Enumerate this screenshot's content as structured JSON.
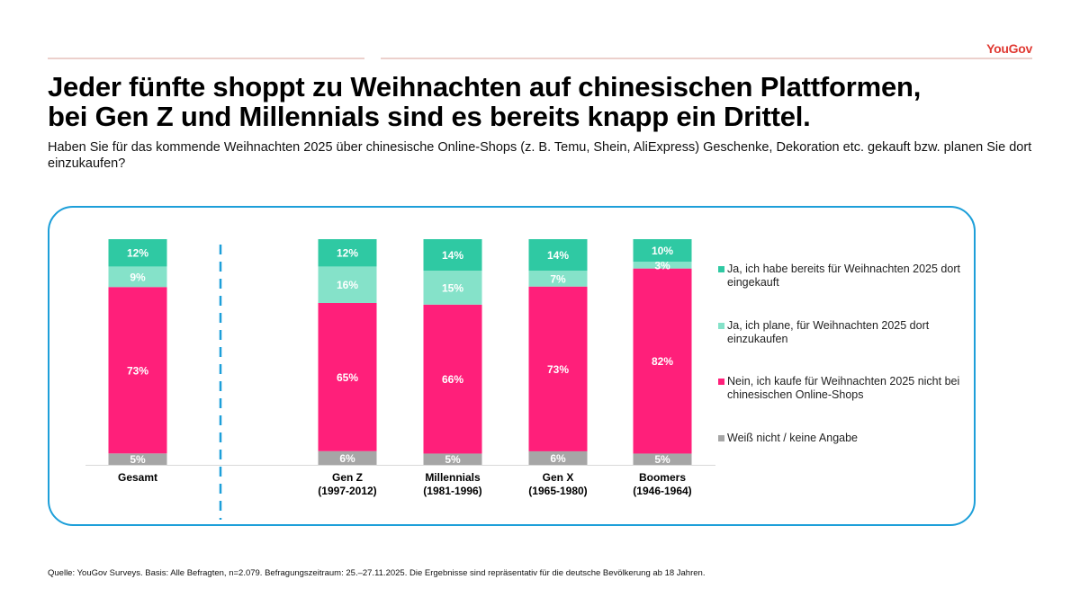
{
  "brand": {
    "logo_text": "YouGov",
    "accent_color": "#e03a33",
    "frame_color": "#1d9fd9"
  },
  "header": {
    "title_line1": "Jeder fünfte shoppt zu Weihnachten auf chinesischen Plattformen,",
    "title_line2": "bei Gen Z und Millennials sind es bereits knapp ein Drittel.",
    "subtitle": "Haben Sie für das kommende Weihnachten 2025 über chinesische Online-Shops (z. B. Temu, Shein, AliExpress) Geschenke, Dekoration etc. gekauft bzw. planen Sie dort einzukaufen?"
  },
  "chart_data": {
    "type": "bar",
    "stacked": true,
    "percent": true,
    "title": "",
    "xlabel": "",
    "ylabel": "",
    "ylim": [
      0,
      100
    ],
    "grid": false,
    "legend_position": "right",
    "categories": [
      {
        "name": "Gesamt",
        "sub": ""
      },
      {
        "name": "Gen Z",
        "sub": "(1997-2012)"
      },
      {
        "name": "Millennials",
        "sub": "(1981-1996)"
      },
      {
        "name": "Gen X",
        "sub": "(1965-1980)"
      },
      {
        "name": "Boomers",
        "sub": "(1946-1964)"
      }
    ],
    "series": [
      {
        "name": "Weiß nicht / keine Angabe",
        "color": "#a6a6a6",
        "values": [
          5,
          6,
          5,
          6,
          5
        ]
      },
      {
        "name": "Nein, ich kaufe für Weihnachten 2025 nicht bei chinesischen Online-Shops",
        "color": "#ff1f7a",
        "values": [
          73,
          65,
          66,
          73,
          82
        ]
      },
      {
        "name": "Ja, ich plane, für Weihnachten 2025 dort einzukaufen",
        "color": "#85e2c9",
        "values": [
          9,
          16,
          15,
          7,
          3
        ]
      },
      {
        "name": "Ja, ich habe bereits für Weihnachten 2025 dort eingekauft",
        "color": "#2fc9a3",
        "values": [
          12,
          12,
          14,
          14,
          10
        ]
      }
    ],
    "value_suffix": "%",
    "separator_after_category": "Gesamt"
  },
  "legend": [
    {
      "label": "Ja, ich habe bereits für Weihnachten 2025 dort eingekauft",
      "color": "#2fc9a3"
    },
    {
      "label": "Ja, ich plane, für Weihnachten 2025 dort einzukaufen",
      "color": "#85e2c9"
    },
    {
      "label": "Nein, ich kaufe für Weihnachten 2025 nicht bei chinesischen Online-Shops",
      "color": "#ff1f7a"
    },
    {
      "label": "Weiß nicht / keine Angabe",
      "color": "#a6a6a6"
    }
  ],
  "footer": {
    "source": "Quelle: YouGov Surveys. Basis: Alle Befragten, n=2.079.  Befragungszeitraum: 25.–27.11.2025. Die Ergebnisse sind repräsentativ für die deutsche Bevölkerung ab 18 Jahren."
  }
}
